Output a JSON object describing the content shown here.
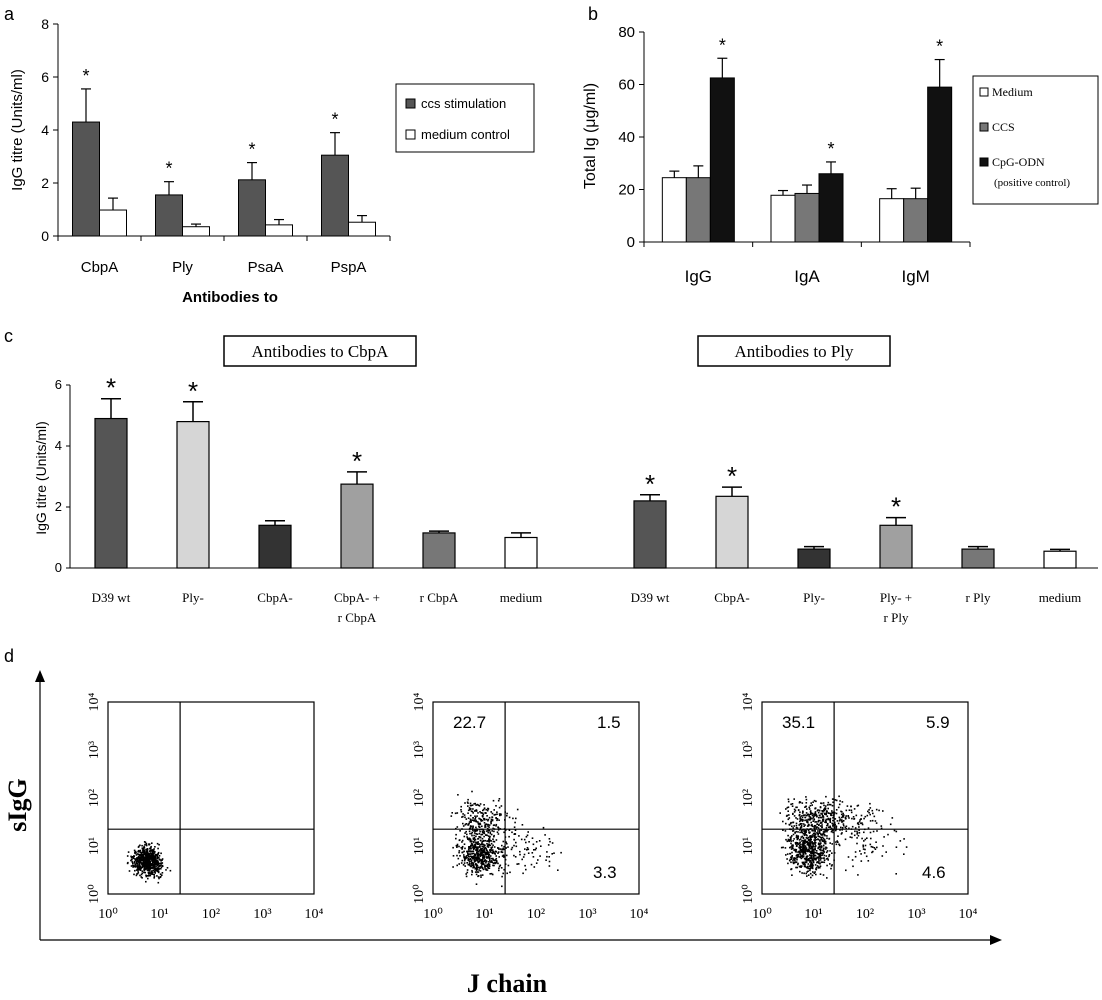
{
  "panels": {
    "a": {
      "letter": "a",
      "chart_data": {
        "type": "bar",
        "categories": [
          "CbpA",
          "Ply",
          "PsaA",
          "PspA"
        ],
        "series": [
          {
            "name": "ccs stimulation",
            "values": [
              4.3,
              1.55,
              2.12,
              3.05
            ],
            "errors": [
              1.25,
              0.5,
              0.65,
              0.85
            ],
            "color": "#555555"
          },
          {
            "name": "medium control",
            "values": [
              0.98,
              0.35,
              0.42,
              0.52
            ],
            "errors": [
              0.45,
              0.1,
              0.2,
              0.25
            ],
            "color": "#ffffff"
          }
        ],
        "significance": [
          [
            "*",
            ""
          ],
          [
            "*",
            ""
          ],
          [
            "*",
            ""
          ],
          [
            "*",
            ""
          ]
        ],
        "ylim": [
          0,
          8
        ],
        "yticks": [
          "0",
          "2",
          "4",
          "6",
          "8"
        ],
        "ylabel": "IgG titre (Units/ml)",
        "xlabel": "Antibodies to",
        "legend": "right"
      }
    },
    "b": {
      "letter": "b",
      "chart_data": {
        "type": "bar",
        "categories": [
          "IgG",
          "IgA",
          "IgM"
        ],
        "series": [
          {
            "name": "Medium",
            "values": [
              24.5,
              17.8,
              16.5
            ],
            "errors": [
              2.5,
              1.8,
              3.8
            ],
            "color": "#ffffff"
          },
          {
            "name": "CCS",
            "values": [
              24.5,
              18.5,
              16.5
            ],
            "errors": [
              4.5,
              3.2,
              4.0
            ],
            "color": "#777777"
          },
          {
            "name": "CpG-ODN (positive control)",
            "legend_lines": [
              "CpG-ODN",
              "(positive control)"
            ],
            "values": [
              62.5,
              26.0,
              59.0
            ],
            "errors": [
              7.5,
              4.5,
              10.5
            ],
            "color": "#111111"
          }
        ],
        "significance": [
          [
            "",
            "",
            "*"
          ],
          [
            "",
            "",
            "*"
          ],
          [
            "",
            "",
            "*"
          ]
        ],
        "ylim": [
          0,
          80
        ],
        "yticks": [
          "0",
          "20",
          "40",
          "60",
          "80"
        ],
        "ylabel": "Total Ig (μg/ml)",
        "legend": "right"
      }
    },
    "c": {
      "letter": "c",
      "chart_data": {
        "type": "bar",
        "groups": [
          {
            "title": "Antibodies to CbpA",
            "categories": [
              [
                "D39 wt"
              ],
              [
                "Ply-"
              ],
              [
                "CbpA-"
              ],
              [
                "CbpA- +",
                "r CbpA"
              ],
              [
                "r CbpA"
              ],
              [
                "medium"
              ]
            ],
            "values": [
              4.9,
              4.8,
              1.4,
              2.75,
              1.15,
              1.0
            ],
            "errors": [
              0.65,
              0.65,
              0.15,
              0.4,
              0.06,
              0.15
            ],
            "colors": [
              "#555555",
              "#d6d6d6",
              "#333333",
              "#a0a0a0",
              "#777777",
              "#ffffff"
            ],
            "significance": [
              "*",
              "*",
              "",
              "*",
              "",
              ""
            ]
          },
          {
            "title": "Antibodies to Ply",
            "categories": [
              [
                "D39 wt"
              ],
              [
                "CbpA-"
              ],
              [
                "Ply-"
              ],
              [
                "Ply- +",
                "r Ply"
              ],
              [
                "r Ply"
              ],
              [
                "medium"
              ]
            ],
            "values": [
              2.2,
              2.35,
              0.62,
              1.4,
              0.62,
              0.55
            ],
            "errors": [
              0.2,
              0.3,
              0.08,
              0.25,
              0.08,
              0.06
            ],
            "colors": [
              "#555555",
              "#d6d6d6",
              "#333333",
              "#a0a0a0",
              "#777777",
              "#ffffff"
            ],
            "significance": [
              "*",
              "*",
              "",
              "*",
              "",
              ""
            ]
          }
        ],
        "ylim": [
          0,
          6
        ],
        "yticks": [
          "0",
          "2",
          "4",
          "6"
        ],
        "ylabel": "IgG titre (Units/ml)"
      }
    },
    "d": {
      "letter": "d",
      "chart_data": {
        "type": "scatter",
        "ylabel": "sIgG",
        "xlabel": "J chain",
        "tick_labels": [
          "10⁰",
          "10¹",
          "10²",
          "10³",
          "10⁴"
        ],
        "plots": [
          {
            "quadrants": {
              "upper_left": "",
              "upper_right": "",
              "lower_right": ""
            },
            "clusters": [
              {
                "cx": 0.75,
                "cy": 0.7,
                "sx": 0.2,
                "sy": 0.2,
                "n": 700
              }
            ]
          },
          {
            "quadrants": {
              "upper_left": "22.7",
              "upper_right": "1.5",
              "lower_right": "3.3"
            },
            "clusters": [
              {
                "cx": 0.9,
                "cy": 0.85,
                "sx": 0.28,
                "sy": 0.32,
                "n": 520
              },
              {
                "cx": 0.95,
                "cy": 1.55,
                "sx": 0.35,
                "sy": 0.3,
                "n": 240
              },
              {
                "cx": 1.7,
                "cy": 0.9,
                "sx": 0.5,
                "sy": 0.45,
                "n": 110
              }
            ]
          },
          {
            "quadrants": {
              "upper_left": "35.1",
              "upper_right": "5.9",
              "lower_right": "4.6"
            },
            "clusters": [
              {
                "cx": 0.9,
                "cy": 0.95,
                "sx": 0.28,
                "sy": 0.35,
                "n": 600
              },
              {
                "cx": 1.1,
                "cy": 1.6,
                "sx": 0.45,
                "sy": 0.3,
                "n": 360
              },
              {
                "cx": 1.9,
                "cy": 1.3,
                "sx": 0.5,
                "sy": 0.5,
                "n": 140
              }
            ]
          }
        ]
      }
    }
  }
}
